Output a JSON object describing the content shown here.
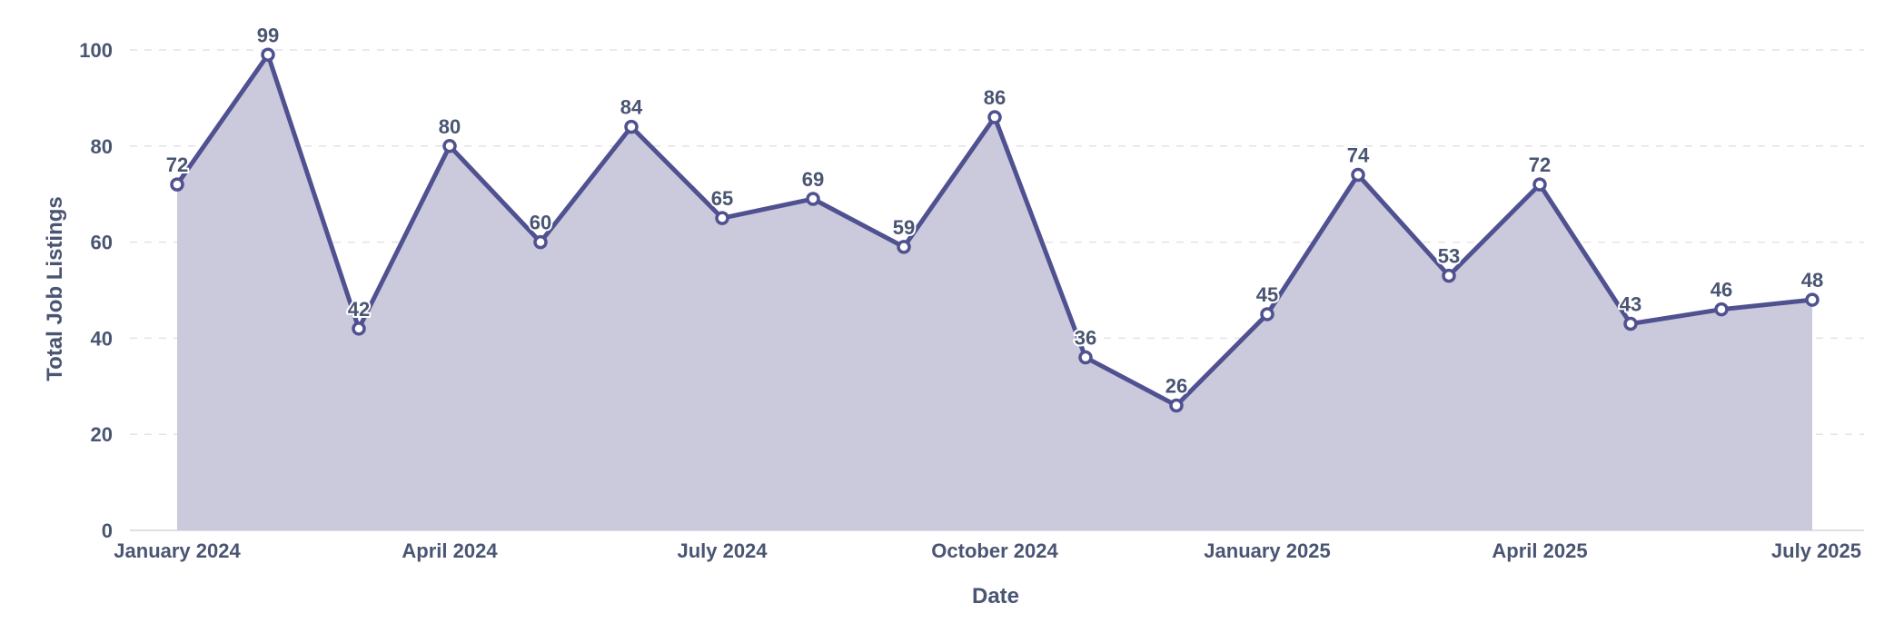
{
  "chart_data": {
    "type": "area",
    "title": "",
    "xlabel": "Date",
    "ylabel": "Total Job Listings",
    "x": [
      "2024-01",
      "2024-02",
      "2024-03",
      "2024-04",
      "2024-05",
      "2024-06",
      "2024-07",
      "2024-08",
      "2024-09",
      "2024-10",
      "2024-11",
      "2024-12",
      "2025-01",
      "2025-02",
      "2025-03",
      "2025-04",
      "2025-05",
      "2025-06",
      "2025-07"
    ],
    "series": [
      {
        "values": [
          72,
          99,
          42,
          80,
          60,
          84,
          65,
          69,
          59,
          86,
          36,
          26,
          45,
          74,
          53,
          72,
          43,
          46,
          48
        ]
      }
    ],
    "x_ticks": [
      "January 2024",
      "April 2024",
      "July 2024",
      "October 2024",
      "January 2025",
      "April 2025",
      "July 2025"
    ],
    "y_ticks": [
      "0",
      "20",
      "40",
      "60",
      "80",
      "100"
    ],
    "ylim": [
      0,
      100
    ],
    "grid": "horizontal dashed",
    "data_labels": true,
    "colors": {
      "line": "#4f5190",
      "fill": "#cbc9dc",
      "marker_fill": "#ffffff",
      "grid": "#e3e3e8",
      "text": "#4a5573"
    }
  }
}
